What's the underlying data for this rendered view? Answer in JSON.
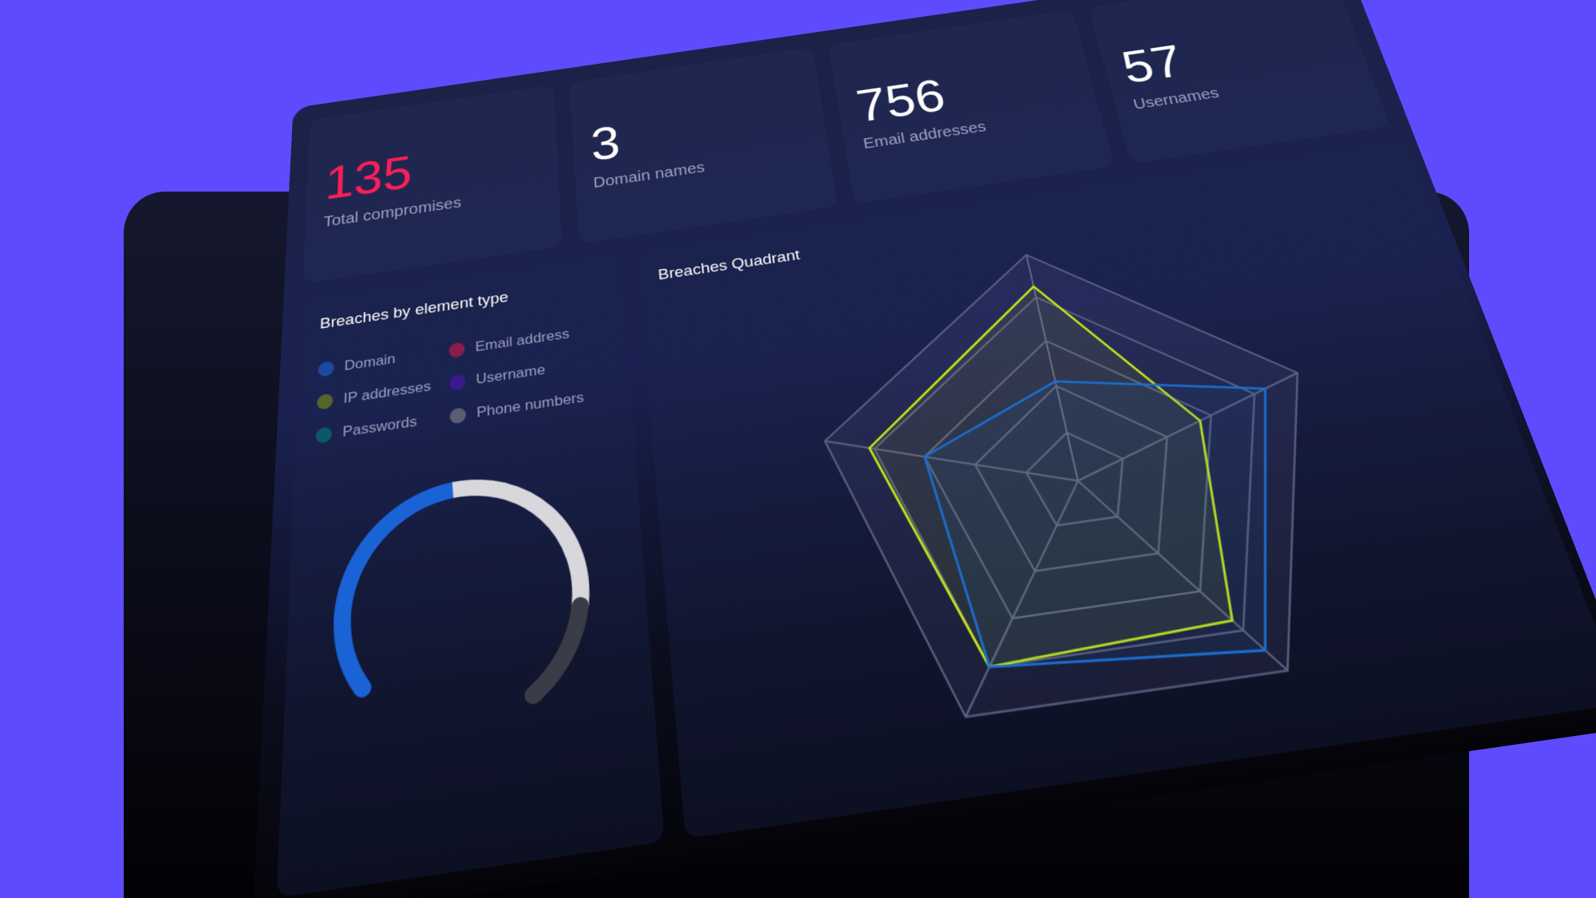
{
  "stats": [
    {
      "value": "135",
      "label": "Total compromises",
      "color": "#ff1d58"
    },
    {
      "value": "3",
      "label": "Domain names"
    },
    {
      "value": "756",
      "label": "Email addresses"
    },
    {
      "value": "57",
      "label": "Usernames"
    }
  ],
  "breaches_by_type": {
    "title": "Breaches by element type",
    "legend": [
      {
        "label": "Domain",
        "color": "#1b4a9e"
      },
      {
        "label": "Email address",
        "color": "#8a1c4c"
      },
      {
        "label": "IP addresses",
        "color": "#56652a"
      },
      {
        "label": "Username",
        "color": "#3b1b8c"
      },
      {
        "label": "Passwords",
        "color": "#0c5866"
      },
      {
        "label": "Phone numbers",
        "color": "#5a5e70"
      }
    ],
    "gauge": {
      "segments": [
        {
          "fraction": 0.45,
          "color": "#1a63d6"
        },
        {
          "fraction": 0.38,
          "color": "#d8d8dc"
        },
        {
          "fraction": 0.17,
          "color": "#3a3c48"
        }
      ]
    }
  },
  "quadrant": {
    "title": "Breaches Quadrant",
    "chart_data": {
      "type": "radar",
      "axes": 5,
      "rings": 5,
      "range": [
        0,
        1
      ],
      "series": [
        {
          "color": "#c6e31a",
          "values": [
            0.85,
            0.55,
            0.75,
            0.8,
            0.82
          ]
        },
        {
          "color": "#1a6ed0",
          "values": [
            0.42,
            0.85,
            0.9,
            0.8,
            0.6
          ]
        }
      ]
    }
  },
  "colors": {
    "background": "#5f4bfe",
    "accent": "#ff1d58"
  }
}
